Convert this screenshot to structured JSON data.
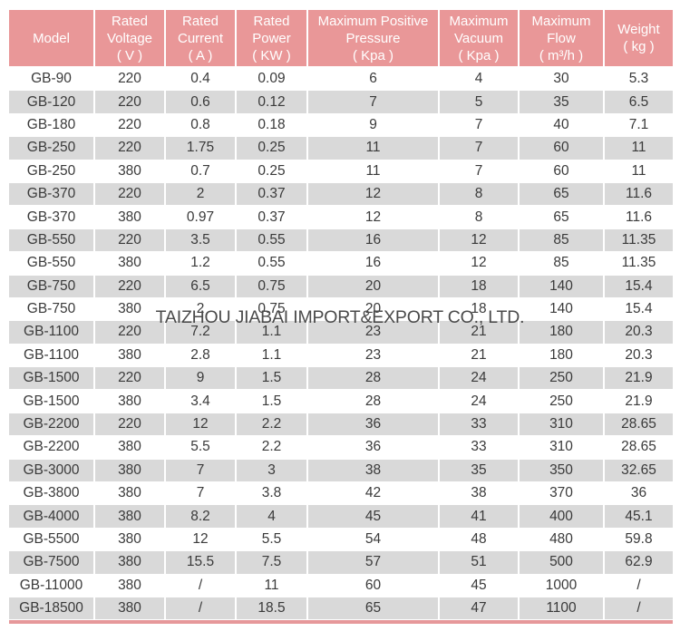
{
  "watermark": {
    "text": "TAIZHOU JIABAI IMPORT&EXPORT CO., LTD."
  },
  "colors": {
    "header_bg": "#E99798",
    "header_text": "#FFFFFF",
    "row_bg": "#FFFFFF",
    "row_alt_bg": "#D9D9D9",
    "body_text": "#3A3A3A",
    "bottom_underline": "#E6989A",
    "watermark_text": "#4A4A4A"
  },
  "table": {
    "columns": [
      {
        "label": "Model"
      },
      {
        "label": "Rated\nVoltage\n( V )"
      },
      {
        "label": "Rated\nCurrent\n( A )"
      },
      {
        "label": "Rated\nPower\n( KW )"
      },
      {
        "label": "Maximum Positive\nPressure\n( Kpa )"
      },
      {
        "label": "Maximum\nVacuum\n( Kpa )"
      },
      {
        "label": "Maximum\nFlow\n( m³/h )"
      },
      {
        "label": "Weight\n( kg )"
      }
    ],
    "rows": [
      [
        "GB-90",
        "220",
        "0.4",
        "0.09",
        "6",
        "4",
        "30",
        "5.3"
      ],
      [
        "GB-120",
        "220",
        "0.6",
        "0.12",
        "7",
        "5",
        "35",
        "6.5"
      ],
      [
        "GB-180",
        "220",
        "0.8",
        "0.18",
        "9",
        "7",
        "40",
        "7.1"
      ],
      [
        "GB-250",
        "220",
        "1.75",
        "0.25",
        "11",
        "7",
        "60",
        "11"
      ],
      [
        "GB-250",
        "380",
        "0.7",
        "0.25",
        "11",
        "7",
        "60",
        "11"
      ],
      [
        "GB-370",
        "220",
        "2",
        "0.37",
        "12",
        "8",
        "65",
        "11.6"
      ],
      [
        "GB-370",
        "380",
        "0.97",
        "0.37",
        "12",
        "8",
        "65",
        "11.6"
      ],
      [
        "GB-550",
        "220",
        "3.5",
        "0.55",
        "16",
        "12",
        "85",
        "11.35"
      ],
      [
        "GB-550",
        "380",
        "1.2",
        "0.55",
        "16",
        "12",
        "85",
        "11.35"
      ],
      [
        "GB-750",
        "220",
        "6.5",
        "0.75",
        "20",
        "18",
        "140",
        "15.4"
      ],
      [
        "GB-750",
        "380",
        "2",
        "0.75",
        "20",
        "18",
        "140",
        "15.4"
      ],
      [
        "GB-1100",
        "220",
        "7.2",
        "1.1",
        "23",
        "21",
        "180",
        "20.3"
      ],
      [
        "GB-1100",
        "380",
        "2.8",
        "1.1",
        "23",
        "21",
        "180",
        "20.3"
      ],
      [
        "GB-1500",
        "220",
        "9",
        "1.5",
        "28",
        "24",
        "250",
        "21.9"
      ],
      [
        "GB-1500",
        "380",
        "3.4",
        "1.5",
        "28",
        "24",
        "250",
        "21.9"
      ],
      [
        "GB-2200",
        "220",
        "12",
        "2.2",
        "36",
        "33",
        "310",
        "28.65"
      ],
      [
        "GB-2200",
        "380",
        "5.5",
        "2.2",
        "36",
        "33",
        "310",
        "28.65"
      ],
      [
        "GB-3000",
        "380",
        "7",
        "3",
        "38",
        "35",
        "350",
        "32.65"
      ],
      [
        "GB-3800",
        "380",
        "7",
        "3.8",
        "42",
        "38",
        "370",
        "36"
      ],
      [
        "GB-4000",
        "380",
        "8.2",
        "4",
        "45",
        "41",
        "400",
        "45.1"
      ],
      [
        "GB-5500",
        "380",
        "12",
        "5.5",
        "54",
        "48",
        "480",
        "59.8"
      ],
      [
        "GB-7500",
        "380",
        "15.5",
        "7.5",
        "57",
        "51",
        "500",
        "62.9"
      ],
      [
        "GB-11000",
        "380",
        "/",
        "11",
        "60",
        "45",
        "1000",
        "/"
      ],
      [
        "GB-18500",
        "380",
        "/",
        "18.5",
        "65",
        "47",
        "1100",
        "/"
      ]
    ]
  }
}
